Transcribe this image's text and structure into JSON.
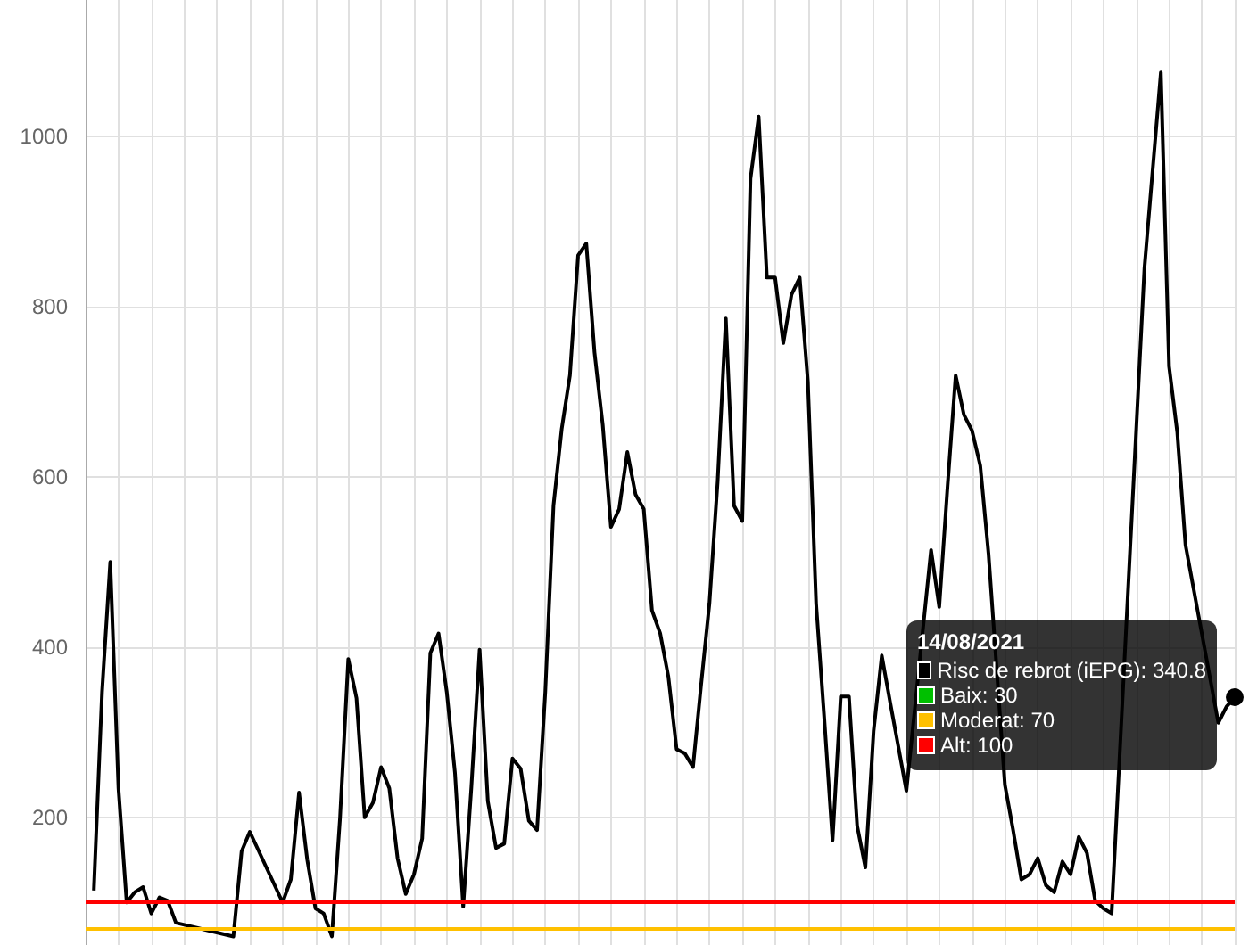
{
  "chart_data": {
    "type": "line",
    "categories": [
      null,
      null,
      null,
      null,
      null,
      null,
      null,
      null,
      null,
      null,
      null,
      null,
      null,
      null,
      null,
      null,
      null,
      null,
      null,
      null,
      null,
      null,
      null,
      null,
      null,
      null,
      null,
      null,
      null,
      null,
      null,
      null,
      null,
      null,
      null,
      null,
      null,
      null,
      null,
      null,
      null,
      null,
      null,
      null,
      null,
      null,
      null,
      null,
      null,
      null,
      null,
      null,
      null,
      null,
      null,
      null,
      null,
      null,
      null,
      null,
      null,
      null,
      null,
      null,
      null,
      null,
      null,
      null,
      null,
      null,
      null,
      null,
      null,
      null,
      null,
      null,
      null,
      null,
      null,
      null,
      null,
      null,
      null,
      null,
      null,
      null,
      null,
      null,
      null,
      null,
      null,
      null,
      null,
      null,
      null,
      null,
      null,
      null,
      null,
      null,
      null,
      null,
      null,
      null,
      null,
      null,
      null,
      null,
      null,
      null,
      null,
      null,
      null,
      null,
      null,
      null,
      null,
      null,
      null,
      null,
      null,
      null,
      null,
      null,
      null,
      null,
      null,
      null,
      null,
      null,
      null,
      null,
      null,
      null,
      null,
      null,
      null,
      null,
      null,
      null,
      null
    ],
    "series": [
      {
        "color": "#000000",
        "values": [
          null,
          114,
          347,
          500,
          234,
          100,
          112,
          118,
          87,
          106,
          102,
          76,
          null,
          null,
          null,
          null,
          null,
          null,
          60,
          160,
          183,
          null,
          null,
          null,
          100,
          127,
          229,
          150,
          93,
          87,
          60,
          200,
          386,
          340,
          200,
          217,
          259,
          234,
          152,
          110,
          133,
          175,
          393,
          416,
          347,
          252,
          95,
          236,
          397,
          219,
          164,
          169,
          269,
          257,
          196,
          185,
          347,
          566,
          656,
          719,
          860,
          874,
          746,
          661,
          541,
          562,
          629,
          579,
          562,
          443,
          416,
          365,
          280,
          275,
          259,
          357,
          451,
          594,
          786,
          566,
          548,
          950,
          1023,
          834,
          834,
          757,
          814,
          834,
          711,
          451,
          315,
          173,
          342,
          342,
          190,
          141,
          301,
          390,
          336,
          284,
          231,
          null,
          null,
          514,
          447,
          587,
          719,
          673,
          654,
          613,
          510,
          null,
          238,
          185,
          127,
          133,
          152,
          120,
          112,
          148,
          133,
          177,
          158,
          102,
          93,
          87,
          null,
          null,
          null,
          845,
          null,
          1075,
          730,
          652,
          520,
          null,
          null,
          null,
          311,
          330,
          340.8
        ]
      }
    ],
    "ylim": [
      50,
      1160
    ],
    "yticks": [
      200,
      400,
      600,
      800,
      1000
    ],
    "grid": true,
    "tick_labels": "y",
    "ref_lines": [
      {
        "axis": "y",
        "value": 70,
        "color": "#ffc000"
      },
      {
        "axis": "y",
        "value": 100,
        "color": "#ff0000"
      }
    ],
    "annotations": [
      "14/08/2021",
      "Risc de rebrot (iEPG): 340.8",
      "Baix: 30",
      "Moderat: 70",
      "Alt: 100"
    ]
  }
}
